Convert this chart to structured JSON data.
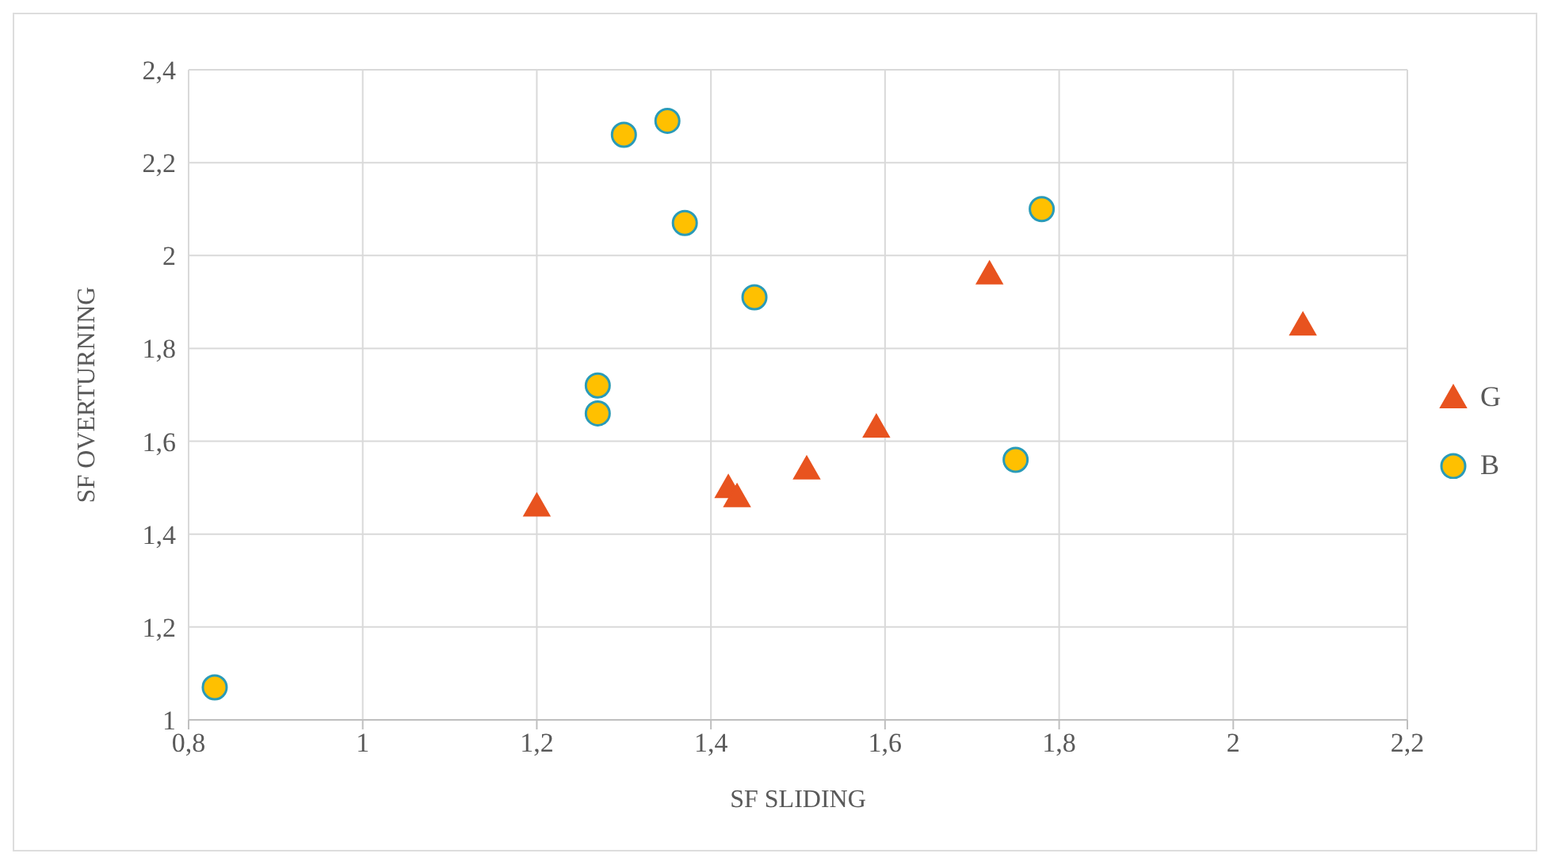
{
  "chart_data": {
    "type": "scatter",
    "xlabel": "SF SLIDING",
    "ylabel": "SF OVERTURNING",
    "xlim": [
      0.8,
      2.2
    ],
    "xticks": [
      {
        "value": 0.8,
        "label": "0,8"
      },
      1,
      {
        "value": 1.2,
        "label": "1,2"
      },
      {
        "value": 1.4,
        "label": "1,4"
      },
      {
        "value": 1.6,
        "label": "1,6"
      },
      {
        "value": 1.8,
        "label": "1,8"
      },
      2,
      {
        "value": 2.2,
        "label": "2,2"
      }
    ],
    "ylim": [
      1,
      2.4
    ],
    "yticks": [
      1,
      {
        "value": 1.2,
        "label": "1,2"
      },
      {
        "value": 1.4,
        "label": "1,4"
      },
      {
        "value": 1.6,
        "label": "1,6"
      },
      {
        "value": 1.8,
        "label": "1,8"
      },
      2,
      {
        "value": 2.2,
        "label": "2,2"
      },
      {
        "value": 2.4,
        "label": "2,4"
      }
    ],
    "grid": true,
    "legend": "right",
    "series": [
      {
        "name": "G",
        "color": "#e8531f",
        "marker": "triangle",
        "x": [
          1.2,
          1.42,
          1.43,
          1.51,
          1.59,
          1.72,
          2.08
        ],
        "values": [
          1.46,
          1.5,
          1.48,
          1.54,
          1.63,
          1.96,
          1.85
        ]
      },
      {
        "name": "B",
        "color": "#ffc000",
        "marker": "circle",
        "x": [
          0.83,
          1.27,
          1.27,
          1.3,
          1.35,
          1.37,
          1.45,
          1.75,
          1.78
        ],
        "values": [
          1.07,
          1.72,
          1.66,
          2.26,
          2.29,
          2.07,
          1.91,
          1.56,
          2.1
        ]
      }
    ]
  }
}
